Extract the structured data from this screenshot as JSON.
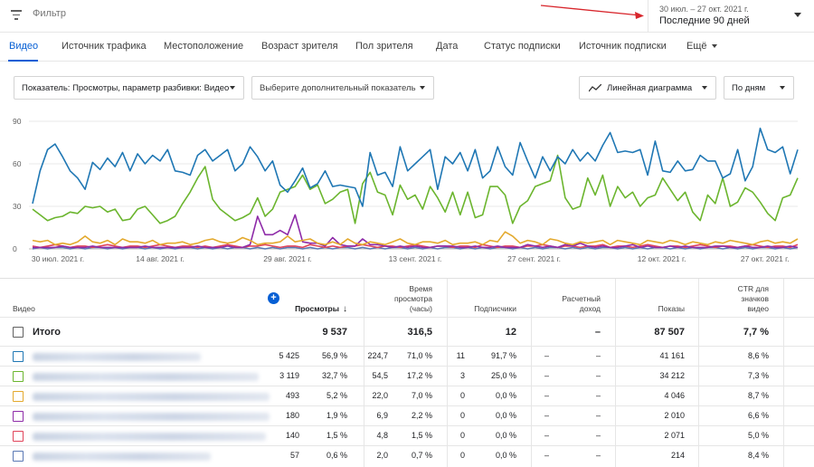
{
  "filter": {
    "placeholder": "Фильтр"
  },
  "date_range": {
    "range_text": "30 июл. – 27 окт. 2021 г.",
    "label": "Последние 90 дней"
  },
  "tabs": [
    {
      "label": "Видео",
      "active": true
    },
    {
      "label": "Источник трафика"
    },
    {
      "label": "Местоположение"
    },
    {
      "label": "Возраст зрителя"
    },
    {
      "label": "Пол зрителя"
    },
    {
      "label": "Дата"
    },
    {
      "label": "Статус подписки"
    },
    {
      "label": "Источник подписки"
    },
    {
      "label": "Ещё"
    }
  ],
  "controls": {
    "metric": "Показатель: Просмотры, параметр разбивки: Видео",
    "secondary_metric": "Выберите дополнительный показатель",
    "chart_type": "Линейная диаграмма",
    "interval": "По дням"
  },
  "chart_data": {
    "type": "line",
    "ylim": [
      0,
      90
    ],
    "yticks": [
      0,
      30,
      60,
      90
    ],
    "xtick_labels": [
      "30 июл. 2021 г.",
      "14 авг. 2021 г.",
      "29 авг. 2021 г.",
      "13 сент. 2021 г.",
      "27 сент. 2021 г.",
      "12 окт. 2021 г.",
      "27 окт. 2021 г."
    ],
    "xtick_day_index": [
      0,
      15,
      30,
      45,
      59,
      74,
      89
    ],
    "colors": [
      "#1f77b4",
      "#6bb52e",
      "#e3a92d",
      "#8e2ba8",
      "#e0445a",
      "#5a78b4"
    ],
    "series": [
      {
        "values": [
          32,
          55,
          70,
          74,
          65,
          55,
          50,
          42,
          61,
          56,
          64,
          58,
          68,
          55,
          67,
          60,
          66,
          62,
          70,
          55,
          54,
          52,
          66,
          70,
          62,
          66,
          70,
          55,
          60,
          72,
          65,
          55,
          62,
          45,
          40,
          48,
          57,
          43,
          46,
          55,
          44,
          45,
          44,
          43,
          30,
          68,
          52,
          54,
          44,
          72,
          55,
          60,
          65,
          70,
          42,
          65,
          60,
          68,
          55,
          70,
          50,
          55,
          72,
          58,
          52,
          75,
          62,
          50,
          65,
          55,
          65,
          60,
          70,
          62,
          68,
          62,
          73,
          82,
          68,
          69,
          68,
          70,
          52,
          76,
          55,
          54,
          62,
          55,
          56,
          66,
          62,
          62,
          50,
          53,
          70,
          48,
          58,
          85,
          70,
          68,
          72,
          53,
          70
        ]
      },
      {
        "values": [
          28,
          24,
          20,
          22,
          23,
          26,
          25,
          30,
          29,
          30,
          26,
          28,
          20,
          21,
          28,
          30,
          24,
          18,
          20,
          23,
          32,
          40,
          50,
          58,
          35,
          28,
          24,
          20,
          22,
          25,
          36,
          23,
          28,
          40,
          42,
          44,
          52,
          42,
          45,
          32,
          35,
          40,
          42,
          18,
          46,
          54,
          40,
          38,
          24,
          45,
          35,
          38,
          28,
          44,
          36,
          26,
          40,
          24,
          40,
          22,
          24,
          44,
          44,
          38,
          18,
          30,
          34,
          44,
          46,
          48,
          66,
          36,
          28,
          30,
          50,
          38,
          52,
          30,
          44,
          36,
          40,
          30,
          36,
          38,
          50,
          42,
          34,
          40,
          26,
          20,
          38,
          32,
          50,
          30,
          33,
          43,
          40,
          33,
          25,
          20,
          36,
          38,
          50
        ]
      },
      {
        "values": [
          6,
          5,
          6,
          3,
          4,
          3,
          5,
          9,
          5,
          4,
          6,
          3,
          7,
          5,
          5,
          4,
          6,
          3,
          4,
          4,
          5,
          3,
          4,
          6,
          7,
          5,
          4,
          5,
          8,
          6,
          3,
          4,
          4,
          5,
          9,
          5,
          6,
          7,
          4,
          3,
          5,
          3,
          7,
          4,
          3,
          5,
          4,
          3,
          5,
          7,
          4,
          3,
          5,
          5,
          4,
          6,
          3,
          4,
          4,
          5,
          3,
          6,
          5,
          12,
          9,
          4,
          6,
          5,
          3,
          7,
          6,
          4,
          3,
          5,
          4,
          5,
          6,
          3,
          6,
          5,
          4,
          3,
          6,
          5,
          4,
          6,
          5,
          3,
          5,
          4,
          3,
          5,
          4,
          6,
          5,
          4,
          3,
          5,
          6,
          4,
          5,
          4,
          7
        ]
      },
      {
        "values": [
          1,
          1,
          1,
          1,
          2,
          1,
          1,
          1,
          2,
          1,
          1,
          1,
          1,
          1,
          1,
          2,
          1,
          1,
          1,
          1,
          1,
          1,
          2,
          1,
          1,
          1,
          2,
          1,
          1,
          3,
          23,
          10,
          10,
          13,
          10,
          24,
          5,
          4,
          4,
          2,
          8,
          3,
          2,
          2,
          7,
          3,
          3,
          2,
          1,
          2,
          1,
          2,
          1,
          1,
          2,
          2,
          2,
          1,
          1,
          2,
          1,
          1,
          2,
          1,
          1,
          1,
          3,
          2,
          1,
          2,
          1,
          3,
          2,
          4,
          2,
          1,
          2,
          1,
          1,
          2,
          3,
          1,
          2,
          1,
          1,
          2,
          1,
          2,
          1,
          1,
          1,
          2,
          2,
          1,
          1,
          2,
          1,
          1,
          2,
          1,
          1,
          2,
          1
        ]
      },
      {
        "values": [
          2,
          1,
          2,
          3,
          2,
          1,
          2,
          2,
          1,
          2,
          3,
          2,
          1,
          2,
          2,
          1,
          2,
          3,
          2,
          1,
          2,
          2,
          1,
          2,
          1,
          2,
          3,
          2,
          1,
          2,
          2,
          3,
          2,
          1,
          2,
          2,
          1,
          3,
          2,
          1,
          2,
          1,
          2,
          2,
          3,
          2,
          1,
          2,
          2,
          1,
          2,
          3,
          2,
          1,
          2,
          2,
          1,
          2,
          2,
          1,
          3,
          2,
          1,
          2,
          2,
          1,
          2,
          2,
          3,
          2,
          1,
          2,
          2,
          1,
          2,
          2,
          3,
          1,
          2,
          2,
          1,
          2,
          3,
          2,
          1,
          2,
          2,
          1,
          2,
          3,
          2,
          1,
          2,
          2,
          1,
          2,
          3,
          2,
          1,
          2,
          2,
          1,
          3
        ]
      },
      {
        "values": [
          0,
          1,
          0,
          1,
          1,
          0,
          1,
          0,
          1,
          1,
          0,
          1,
          0,
          1,
          1,
          0,
          1,
          0,
          1,
          0,
          1,
          1,
          0,
          1,
          0,
          1,
          0,
          1,
          1,
          0,
          1,
          0,
          1,
          0,
          1,
          1,
          0,
          1,
          0,
          1,
          0,
          1,
          1,
          0,
          1,
          0,
          1,
          0,
          1,
          1,
          0,
          1,
          0,
          1,
          0,
          1,
          1,
          0,
          1,
          0,
          1,
          0,
          1,
          1,
          0,
          1,
          0,
          1,
          0,
          1,
          1,
          0,
          1,
          0,
          1,
          0,
          1,
          1,
          0,
          1,
          0,
          1,
          0,
          1,
          1,
          0,
          1,
          0,
          1,
          0,
          1,
          1,
          0,
          1,
          0,
          1,
          0,
          1,
          1,
          0,
          1,
          0,
          1
        ]
      }
    ]
  },
  "table": {
    "headers": {
      "video": "Видео",
      "views": "Просмотры",
      "watch_time": [
        "Время",
        "просмотра",
        "(часы)"
      ],
      "subscribers": "Подписчики",
      "revenue": [
        "Расчетный",
        "доход"
      ],
      "impressions": "Показы",
      "ctr": [
        "CTR для",
        "значков",
        "видео"
      ]
    },
    "total": {
      "label": "Итого",
      "views": "9 537",
      "watch_time": "316,5",
      "subscribers": "12",
      "revenue": "–",
      "impressions": "87 507",
      "ctr": "7,7 %"
    },
    "rows": [
      {
        "color": "#1f77b4",
        "views": "5 425",
        "views_pct": "56,9 %",
        "watch": "224,7",
        "watch_pct": "71,0 %",
        "subs": "11",
        "subs_pct": "91,7 %",
        "rev": "–",
        "rev_pct": "–",
        "impressions": "41 161",
        "ctr": "8,6 %"
      },
      {
        "color": "#6bb52e",
        "views": "3 119",
        "views_pct": "32,7 %",
        "watch": "54,5",
        "watch_pct": "17,2 %",
        "subs": "3",
        "subs_pct": "25,0 %",
        "rev": "–",
        "rev_pct": "–",
        "impressions": "34 212",
        "ctr": "7,3 %"
      },
      {
        "color": "#e3a92d",
        "views": "493",
        "views_pct": "5,2 %",
        "watch": "22,0",
        "watch_pct": "7,0 %",
        "subs": "0",
        "subs_pct": "0,0 %",
        "rev": "–",
        "rev_pct": "–",
        "impressions": "4 046",
        "ctr": "8,7 %"
      },
      {
        "color": "#8e2ba8",
        "views": "180",
        "views_pct": "1,9 %",
        "watch": "6,9",
        "watch_pct": "2,2 %",
        "subs": "0",
        "subs_pct": "0,0 %",
        "rev": "–",
        "rev_pct": "–",
        "impressions": "2 010",
        "ctr": "6,6 %"
      },
      {
        "color": "#e0445a",
        "views": "140",
        "views_pct": "1,5 %",
        "watch": "4,8",
        "watch_pct": "1,5 %",
        "subs": "0",
        "subs_pct": "0,0 %",
        "rev": "–",
        "rev_pct": "–",
        "impressions": "2 071",
        "ctr": "5,0 %"
      },
      {
        "color": "#5a78b4",
        "views": "57",
        "views_pct": "0,6 %",
        "watch": "2,0",
        "watch_pct": "0,7 %",
        "subs": "0",
        "subs_pct": "0,0 %",
        "rev": "–",
        "rev_pct": "–",
        "impressions": "214",
        "ctr": "8,4 %"
      }
    ]
  }
}
